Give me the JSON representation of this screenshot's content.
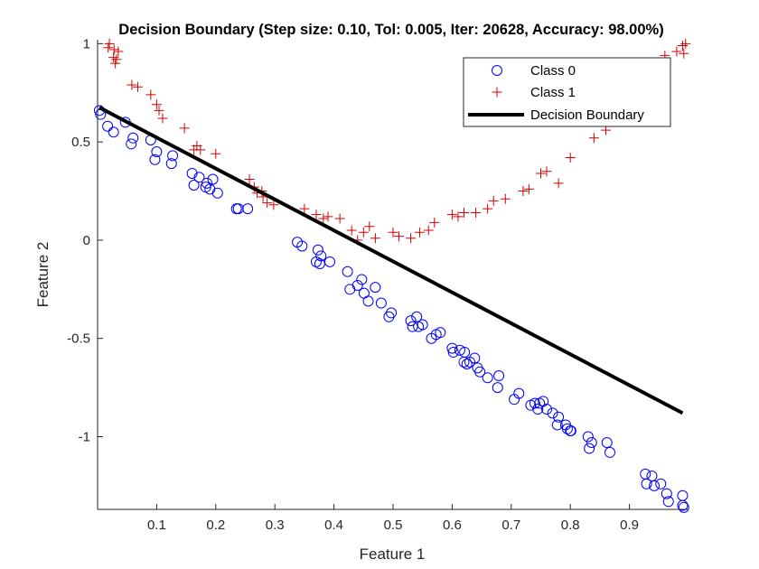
{
  "chart_data": {
    "type": "scatter",
    "title": "Decision Boundary (Step size: 0.10, Tol: 0.005, Iter: 20628, Accuracy: 98.00%)",
    "xlabel": "Feature 1",
    "ylabel": "Feature 2",
    "xlim": [
      0,
      1
    ],
    "ylim": [
      -1.37,
      1.02
    ],
    "xticks": [
      0.1,
      0.2,
      0.3,
      0.4,
      0.5,
      0.6,
      0.7,
      0.8,
      0.9
    ],
    "yticks": [
      -1,
      -0.5,
      0,
      0.5,
      1
    ],
    "xtick_labels": [
      "0.1",
      "0.2",
      "0.3",
      "0.4",
      "0.5",
      "0.6",
      "0.7",
      "0.8",
      "0.9"
    ],
    "ytick_labels": [
      "-1",
      "-0.5",
      "0",
      "0.5",
      "1"
    ],
    "legend_position": "top-right",
    "grid": false,
    "series": [
      {
        "name": "Class 0",
        "marker": "circle",
        "color": "#0000ff",
        "x": [
          0.003,
          0.005,
          0.017,
          0.027,
          0.047,
          0.057,
          0.06,
          0.09,
          0.097,
          0.1,
          0.125,
          0.127,
          0.16,
          0.163,
          0.172,
          0.183,
          0.185,
          0.19,
          0.195,
          0.203,
          0.235,
          0.238,
          0.254,
          0.338,
          0.346,
          0.37,
          0.373,
          0.376,
          0.378,
          0.393,
          0.423,
          0.427,
          0.44,
          0.447,
          0.451,
          0.458,
          0.47,
          0.48,
          0.493,
          0.497,
          0.53,
          0.533,
          0.54,
          0.543,
          0.55,
          0.565,
          0.573,
          0.58,
          0.6,
          0.602,
          0.613,
          0.62,
          0.621,
          0.625,
          0.63,
          0.638,
          0.643,
          0.647,
          0.66,
          0.677,
          0.679,
          0.705,
          0.713,
          0.733,
          0.74,
          0.745,
          0.748,
          0.754,
          0.76,
          0.77,
          0.778,
          0.78,
          0.792,
          0.795,
          0.8,
          0.801,
          0.83,
          0.832,
          0.836,
          0.862,
          0.867,
          0.927,
          0.929,
          0.938,
          0.942,
          0.953,
          0.963,
          0.966,
          0.99,
          0.99,
          0.992
        ],
        "y": [
          0.66,
          0.64,
          0.58,
          0.55,
          0.6,
          0.49,
          0.52,
          0.51,
          0.41,
          0.45,
          0.39,
          0.43,
          0.34,
          0.28,
          0.32,
          0.27,
          0.29,
          0.26,
          0.31,
          0.24,
          0.16,
          0.16,
          0.16,
          -0.01,
          -0.03,
          -0.11,
          -0.05,
          -0.12,
          -0.08,
          -0.11,
          -0.16,
          -0.25,
          -0.23,
          -0.2,
          -0.27,
          -0.31,
          -0.24,
          -0.32,
          -0.39,
          -0.37,
          -0.41,
          -0.44,
          -0.39,
          -0.44,
          -0.43,
          -0.5,
          -0.48,
          -0.47,
          -0.55,
          -0.57,
          -0.56,
          -0.62,
          -0.57,
          -0.63,
          -0.62,
          -0.6,
          -0.65,
          -0.67,
          -0.7,
          -0.75,
          -0.69,
          -0.81,
          -0.78,
          -0.84,
          -0.83,
          -0.86,
          -0.83,
          -0.82,
          -0.86,
          -0.88,
          -0.94,
          -0.9,
          -0.94,
          -0.96,
          -0.97,
          -0.97,
          -1.0,
          -1.06,
          -1.03,
          -1.03,
          -1.08,
          -1.19,
          -1.24,
          -1.2,
          -1.25,
          -1.24,
          -1.29,
          -1.33,
          -1.3,
          -1.35,
          -1.36
        ]
      },
      {
        "name": "Class 1",
        "marker": "plus",
        "color": "#d40000",
        "x": [
          0.018,
          0.02,
          0.027,
          0.028,
          0.03,
          0.032,
          0.035,
          0.058,
          0.068,
          0.09,
          0.1,
          0.104,
          0.11,
          0.147,
          0.163,
          0.168,
          0.174,
          0.2,
          0.257,
          0.265,
          0.27,
          0.278,
          0.28,
          0.287,
          0.298,
          0.35,
          0.37,
          0.382,
          0.39,
          0.41,
          0.43,
          0.44,
          0.45,
          0.46,
          0.47,
          0.5,
          0.51,
          0.53,
          0.545,
          0.56,
          0.57,
          0.6,
          0.61,
          0.62,
          0.64,
          0.66,
          0.67,
          0.69,
          0.72,
          0.73,
          0.75,
          0.76,
          0.78,
          0.8,
          0.84,
          0.86,
          0.96,
          0.98,
          0.99,
          0.992,
          0.995
        ],
        "y": [
          0.98,
          1.0,
          0.93,
          0.97,
          0.9,
          0.92,
          0.96,
          0.79,
          0.78,
          0.74,
          0.69,
          0.66,
          0.62,
          0.57,
          0.46,
          0.48,
          0.46,
          0.44,
          0.31,
          0.27,
          0.24,
          0.25,
          0.22,
          0.19,
          0.18,
          0.16,
          0.13,
          0.11,
          0.12,
          0.11,
          0.05,
          0.0,
          0.04,
          0.07,
          0.01,
          0.04,
          0.02,
          0.01,
          0.04,
          0.05,
          0.09,
          0.13,
          0.12,
          0.14,
          0.14,
          0.16,
          0.2,
          0.21,
          0.25,
          0.26,
          0.34,
          0.35,
          0.29,
          0.42,
          0.52,
          0.56,
          0.94,
          0.96,
          0.99,
          0.95,
          1.0
        ]
      },
      {
        "name": "Decision Boundary",
        "type": "line",
        "color": "#000000",
        "x": [
          0.003,
          0.99
        ],
        "y": [
          0.675,
          -0.88
        ]
      }
    ]
  }
}
